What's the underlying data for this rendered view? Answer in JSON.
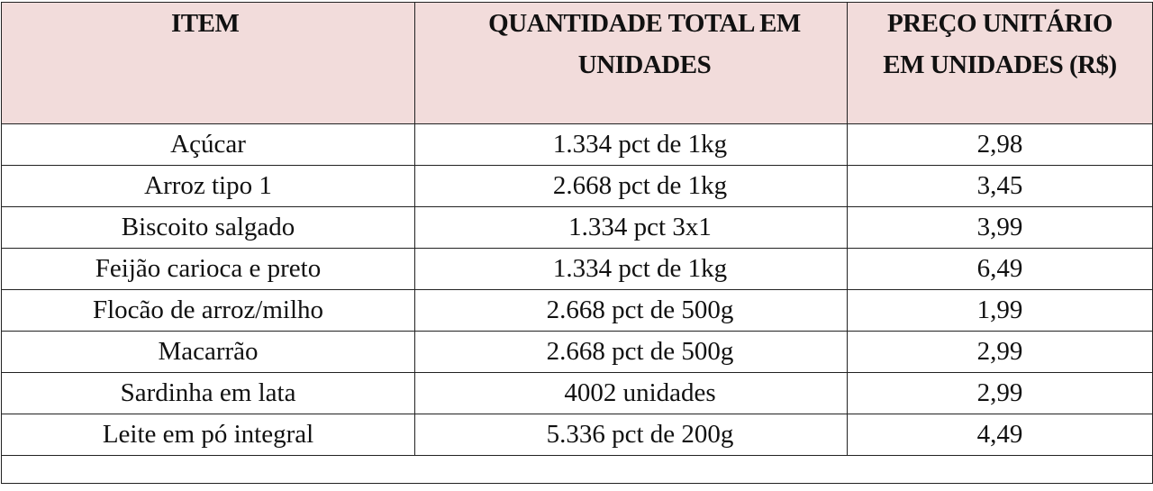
{
  "table": {
    "header": [
      "ITEM",
      "QUANTIDADE TOTAL EM UNIDADES",
      "PREÇO UNITÁRIO EM UNIDADES (R$)"
    ],
    "rows": [
      [
        "Açúcar",
        "1.334 pct de 1kg",
        "2,98"
      ],
      [
        "Arroz tipo 1",
        "2.668 pct de 1kg",
        "3,45"
      ],
      [
        "Biscoito salgado",
        "1.334 pct 3x1",
        "3,99"
      ],
      [
        "Feijão carioca e preto",
        "1.334 pct de 1kg",
        "6,49"
      ],
      [
        "Flocão de arroz/milho",
        "2.668 pct de 500g",
        "1,99"
      ],
      [
        "Macarrão",
        "2.668 pct de 500g",
        "2,99"
      ],
      [
        "Sardinha em lata",
        "4002 unidades",
        "2,99"
      ],
      [
        "Leite em pó integral",
        "5.336 pct de 200g",
        "4,49"
      ]
    ]
  }
}
